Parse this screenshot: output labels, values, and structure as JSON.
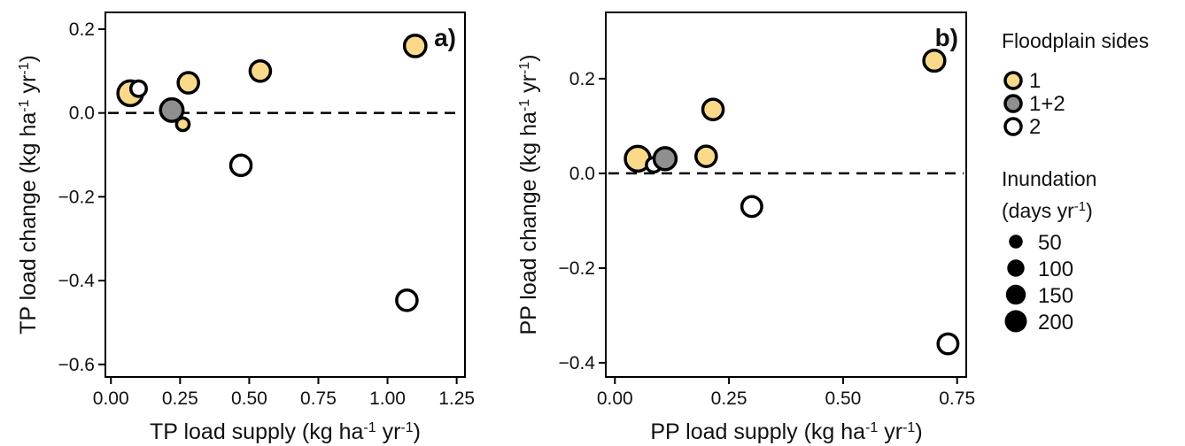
{
  "colors": {
    "side_1": "#F8DA8A",
    "side_1_2": "#8F8F8F",
    "side_2": "#FFFFFF",
    "stroke": "#000000"
  },
  "chart_data": [
    {
      "type": "scatter",
      "panel_label": "a)",
      "xlabel": "TP load supply (kg ha-1 yr-1)",
      "ylabel": "TP load change (kg ha-1 yr-1)",
      "xlim": [
        -0.02,
        1.28
      ],
      "ylim": [
        -0.63,
        0.24
      ],
      "x_ticks": [
        "0.00",
        "0.25",
        "0.50",
        "0.75",
        "1.00",
        "1.25"
      ],
      "x_tick_values": [
        0,
        0.25,
        0.5,
        0.75,
        1.0,
        1.25
      ],
      "y_ticks": [
        "0.2",
        "0.0",
        "−0.2",
        "−0.4",
        "−0.6"
      ],
      "y_tick_values": [
        0.2,
        0.0,
        -0.2,
        -0.4,
        -0.6
      ],
      "reference_line_y": 0,
      "points": [
        {
          "x": 0.07,
          "y": 0.047,
          "side": "1",
          "inundation": 200
        },
        {
          "x": 0.1,
          "y": 0.058,
          "side": "2",
          "inundation": 40
        },
        {
          "x": 0.22,
          "y": 0.007,
          "side": "1+2",
          "inundation": 150
        },
        {
          "x": 0.26,
          "y": -0.027,
          "side": "1",
          "inundation": 15
        },
        {
          "x": 0.28,
          "y": 0.072,
          "side": "1",
          "inundation": 110
        },
        {
          "x": 0.47,
          "y": -0.125,
          "side": "2",
          "inundation": 110
        },
        {
          "x": 0.54,
          "y": 0.1,
          "side": "1",
          "inundation": 110
        },
        {
          "x": 1.07,
          "y": -0.447,
          "side": "2",
          "inundation": 110
        },
        {
          "x": 1.1,
          "y": 0.16,
          "side": "1",
          "inundation": 130
        }
      ]
    },
    {
      "type": "scatter",
      "panel_label": "b)",
      "xlabel": "PP load supply (kg ha-1 yr-1)",
      "ylabel": "PP load change (kg ha-1 yr-1)",
      "xlim": [
        -0.02,
        0.77
      ],
      "ylim": [
        -0.43,
        0.34
      ],
      "x_ticks": [
        "0.00",
        "0.25",
        "0.50",
        "0.75"
      ],
      "x_tick_values": [
        0,
        0.25,
        0.5,
        0.75
      ],
      "y_ticks": [
        "0.2",
        "0.0",
        "−0.2",
        "−0.4"
      ],
      "y_tick_values": [
        0.2,
        0.0,
        -0.2,
        -0.4
      ],
      "reference_line_y": 0,
      "points": [
        {
          "x": 0.05,
          "y": 0.031,
          "side": "1",
          "inundation": 200
        },
        {
          "x": 0.085,
          "y": 0.018,
          "side": "2",
          "inundation": 30
        },
        {
          "x": 0.11,
          "y": 0.031,
          "side": "1+2",
          "inundation": 140
        },
        {
          "x": 0.2,
          "y": 0.036,
          "side": "1",
          "inundation": 110
        },
        {
          "x": 0.215,
          "y": 0.135,
          "side": "1",
          "inundation": 110
        },
        {
          "x": 0.3,
          "y": -0.07,
          "side": "2",
          "inundation": 100
        },
        {
          "x": 0.7,
          "y": 0.238,
          "side": "1",
          "inundation": 120
        },
        {
          "x": 0.73,
          "y": -0.36,
          "side": "2",
          "inundation": 100
        }
      ]
    }
  ],
  "legend": {
    "sides_title": "Floodplain sides",
    "sides": [
      {
        "label": "1",
        "key": "1"
      },
      {
        "label": "1+2",
        "key": "1+2"
      },
      {
        "label": "2",
        "key": "2"
      }
    ],
    "inundation_title": "Inundation",
    "inundation_subtitle": "(days yr-1)",
    "sizes": [
      {
        "label": "50",
        "value": 50
      },
      {
        "label": "100",
        "value": 100
      },
      {
        "label": "150",
        "value": 150
      },
      {
        "label": "200",
        "value": 200
      }
    ]
  }
}
